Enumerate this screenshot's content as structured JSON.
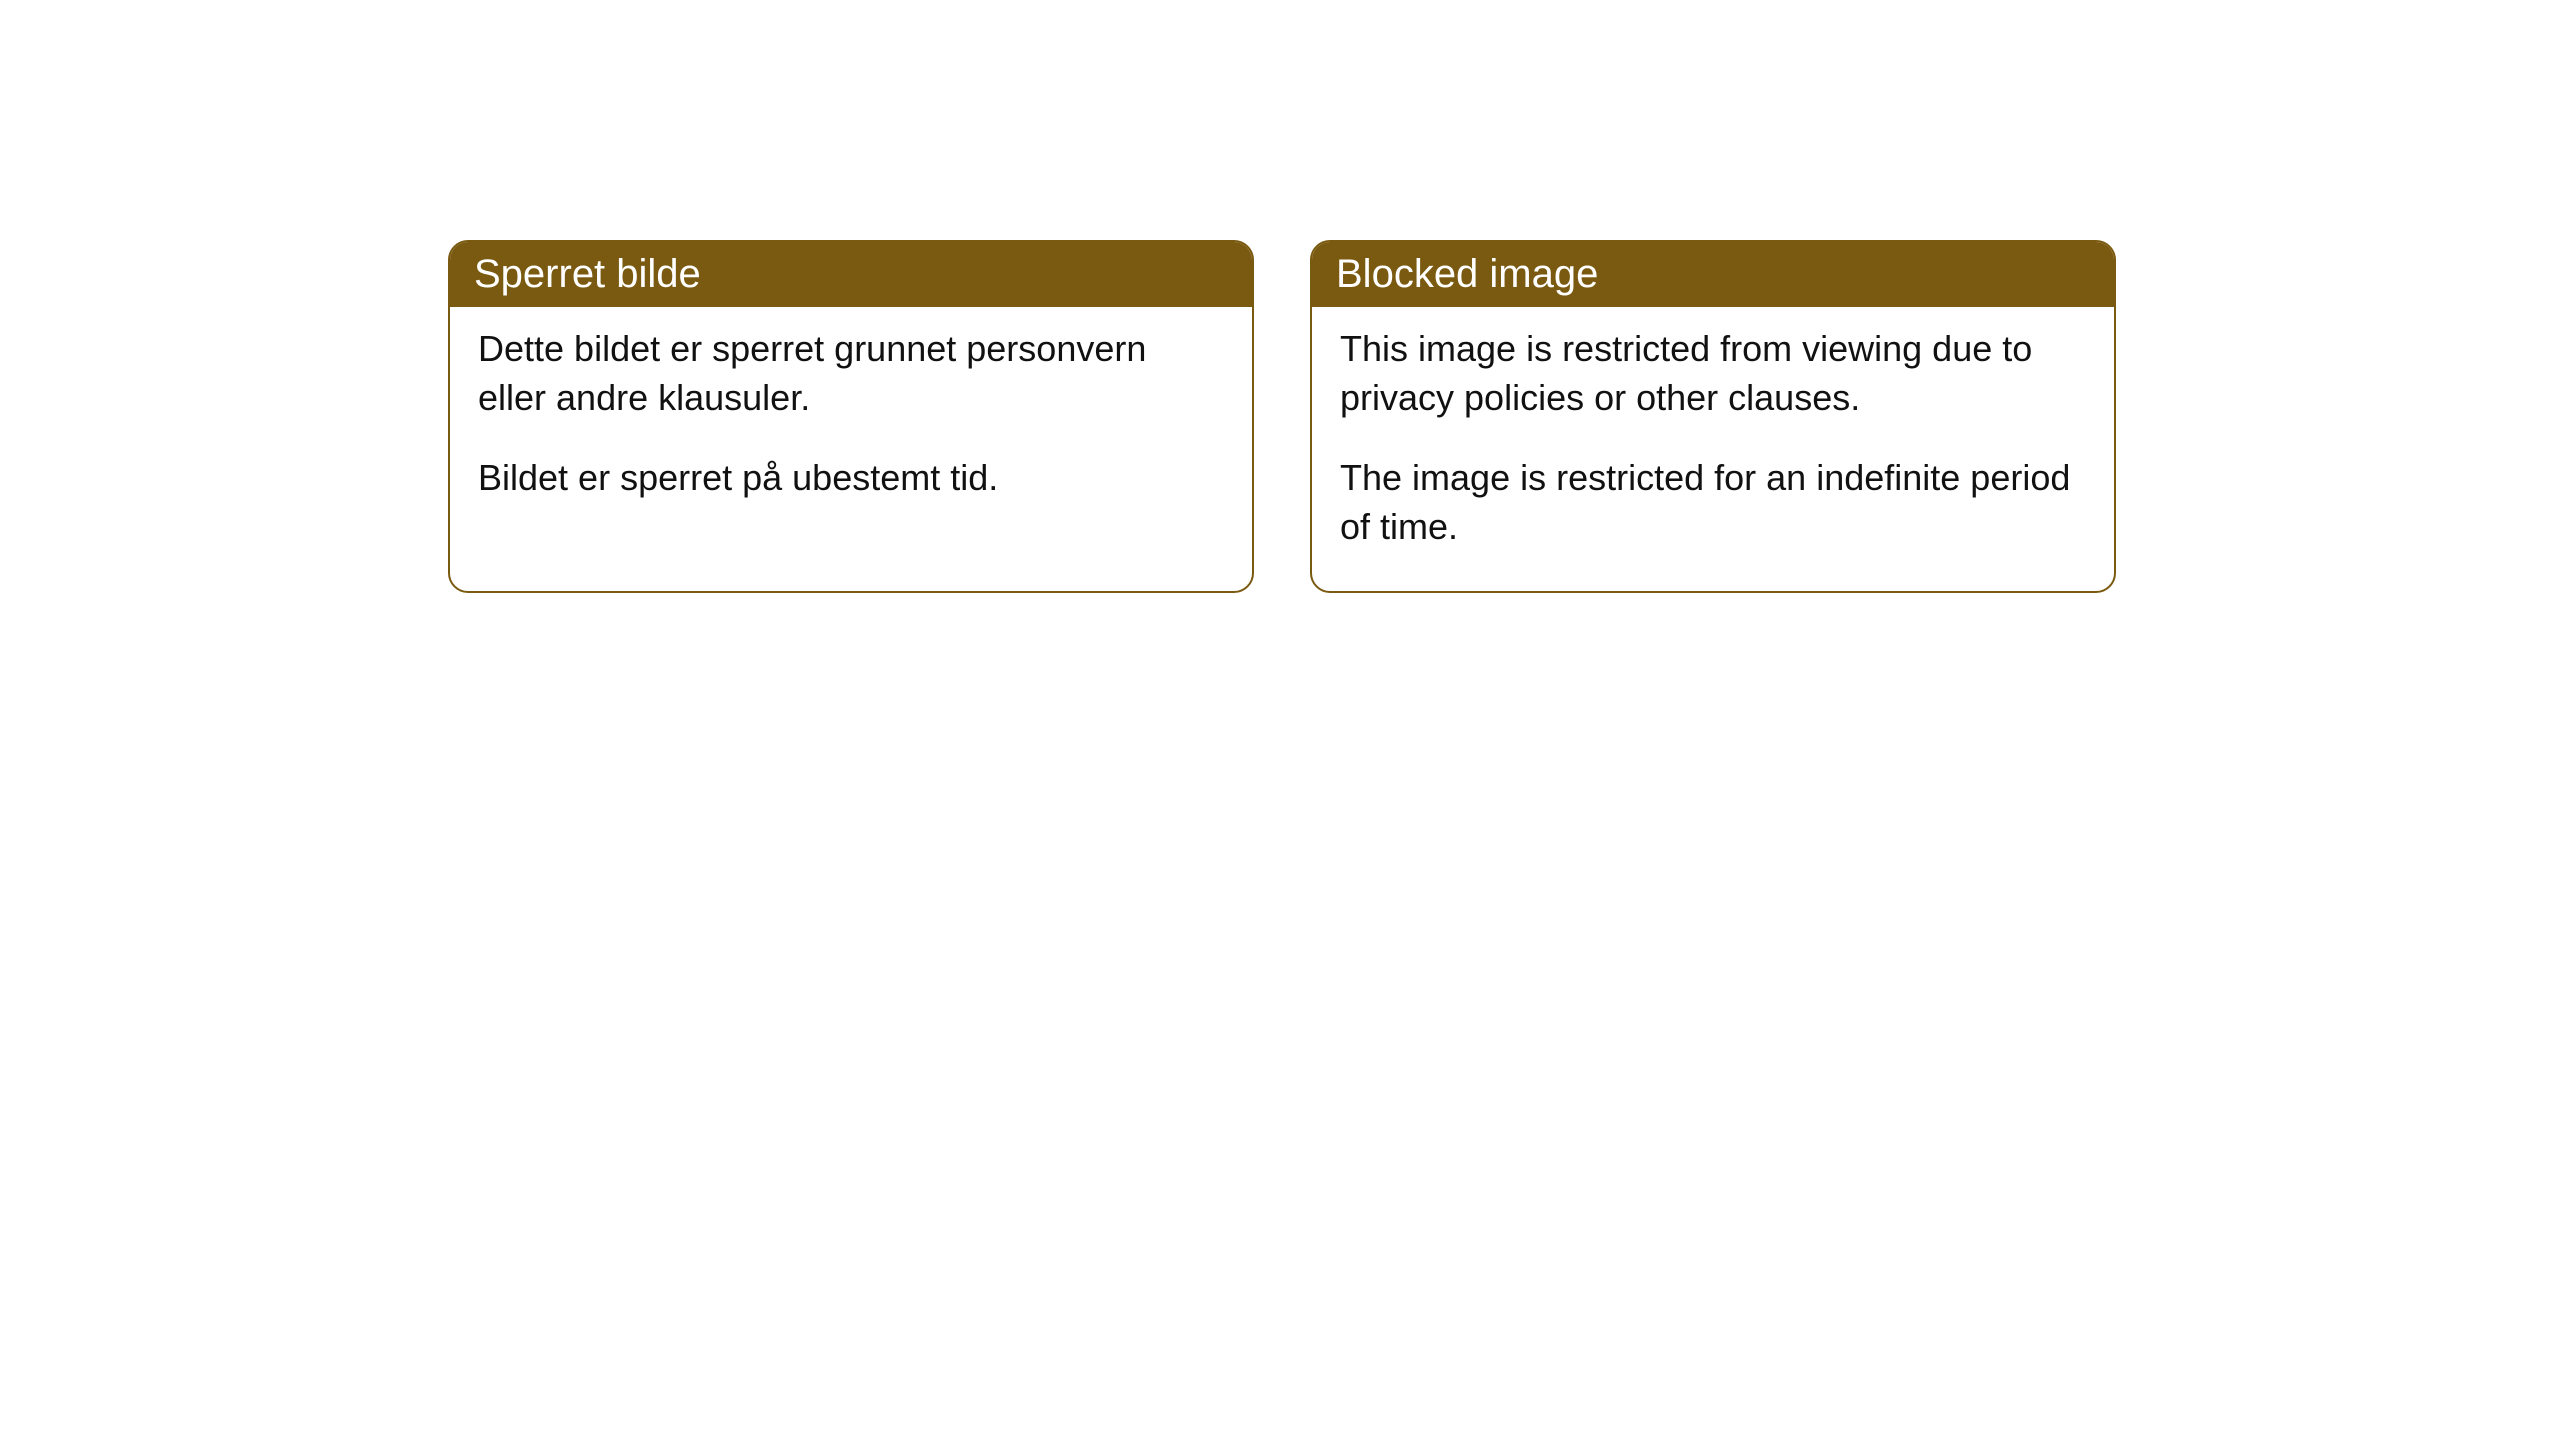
{
  "cards": [
    {
      "title": "Sperret bilde",
      "paragraph1": "Dette bildet er sperret grunnet personvern eller andre klausuler.",
      "paragraph2": "Bildet er sperret på ubestemt tid."
    },
    {
      "title": "Blocked image",
      "paragraph1": "This image is restricted from viewing due to privacy policies or other clauses.",
      "paragraph2": "The image is restricted for an indefinite period of time."
    }
  ],
  "styling": {
    "header_bg_color": "#7a5a10",
    "header_text_color": "#ffffff",
    "border_color": "#7a5a10",
    "body_bg_color": "#ffffff",
    "body_text_color": "#111111",
    "border_radius": 20,
    "header_fontsize": 40,
    "body_fontsize": 36
  }
}
